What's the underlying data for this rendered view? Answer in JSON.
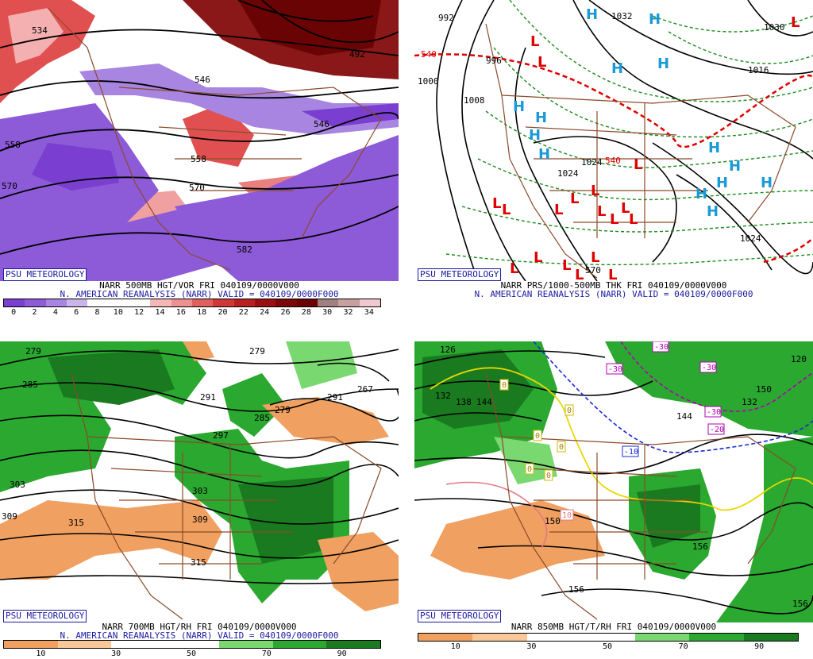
{
  "branding": "PSU METEOROLOGY",
  "panels": [
    {
      "caption1": "NARR 500MB HGT/VOR FRI 040109/0000V000",
      "caption2": "N. AMERICAN REANALYSIS (NARR) VALID = 040109/0000F000",
      "contour_labels": [
        "534",
        "492",
        "546",
        "558",
        "558",
        "570",
        "582",
        "570",
        "546"
      ],
      "scale": {
        "ticks": [
          "0",
          "2",
          "4",
          "6",
          "8",
          "10",
          "12",
          "14",
          "16",
          "18",
          "20",
          "22",
          "24",
          "26",
          "28",
          "30",
          "32",
          "34"
        ],
        "colors": [
          "#7a3fd0",
          "#8d5ad8",
          "#a785e0",
          "#c9b5ea",
          "#ffffff",
          "#ffffff",
          "#ffffff",
          "#f4b8b8",
          "#ee9090",
          "#e06060",
          "#d03838",
          "#b82020",
          "#9a1010",
          "#7a0808",
          "#6a0404",
          "#a08080",
          "#c8a0a0",
          "#f0c8d0"
        ]
      }
    },
    {
      "caption1": "NARR PRS/1000-500MB THK FRI 040109/0000V000",
      "caption2": "N. AMERICAN REANALYSIS (NARR) VALID = 040109/0000F000",
      "contour_labels": [
        "992",
        "1032",
        "1000",
        "1008",
        "1024",
        "1024",
        "1024",
        "540",
        "540",
        "570",
        "1016",
        "1030",
        "996"
      ],
      "high_marks": [
        "H",
        "H",
        "H",
        "H",
        "H",
        "H",
        "H",
        "H",
        "H",
        "H",
        "H",
        "H",
        "H",
        "H"
      ],
      "low_marks": [
        "L",
        "L",
        "L",
        "L",
        "L",
        "L",
        "L",
        "L",
        "L",
        "L",
        "L",
        "L",
        "L",
        "L",
        "L",
        "L",
        "L",
        "L",
        "L"
      ]
    },
    {
      "caption1": "NARR 700MB HGT/RH FRI 040109/0000V000",
      "caption2": "N. AMERICAN REANALYSIS (NARR) VALID = 040109/0000F000",
      "contour_labels": [
        "279",
        "279",
        "285",
        "291",
        "297",
        "303",
        "309",
        "315",
        "303",
        "309",
        "315",
        "285",
        "279",
        "267",
        "291"
      ],
      "scale": {
        "ticks": [
          "10",
          "30",
          "50",
          "70",
          "90"
        ],
        "colors": [
          "#f0a060",
          "#f8c898",
          "#ffffff",
          "#ffffff",
          "#7ad870",
          "#2aa830",
          "#1a7a20"
        ]
      }
    },
    {
      "caption1": "NARR 850MB HGT/T/RH FRI 040109/0000V000",
      "caption2": "",
      "contour_labels": [
        "126",
        "132",
        "138",
        "144",
        "150",
        "156",
        "156",
        "156",
        "120",
        "132",
        "144",
        "150"
      ],
      "temp_labels": [
        "-30",
        "-30",
        "-30",
        "-30",
        "-20",
        "-10",
        "0",
        "0",
        "0",
        "0",
        "0",
        "0",
        "10"
      ],
      "scale": {
        "ticks": [
          "10",
          "30",
          "50",
          "70",
          "90"
        ],
        "colors": [
          "#f0a060",
          "#f8c898",
          "#ffffff",
          "#ffffff",
          "#7ad870",
          "#2aa830",
          "#1a7a20"
        ]
      }
    }
  ]
}
